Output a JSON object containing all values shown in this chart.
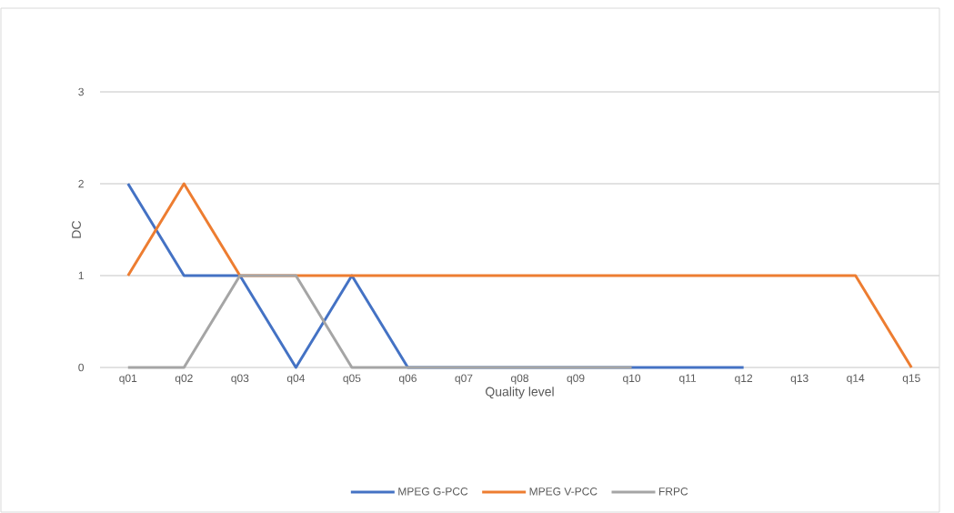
{
  "chart_data": {
    "type": "line",
    "xlabel": "Quality level",
    "ylabel": "DC",
    "categories": [
      "q01",
      "q02",
      "q03",
      "q04",
      "q05",
      "q06",
      "q07",
      "q08",
      "q09",
      "q10",
      "q11",
      "q12",
      "q13",
      "q14",
      "q15"
    ],
    "series": [
      {
        "name": "MPEG G-PCC",
        "color": "#4472c4",
        "values": [
          2,
          1,
          1,
          0,
          1,
          0,
          0,
          0,
          0,
          0,
          0,
          0,
          null,
          null,
          null
        ]
      },
      {
        "name": "MPEG V-PCC",
        "color": "#ed7d31",
        "values": [
          1,
          2,
          1,
          1,
          1,
          1,
          1,
          1,
          1,
          1,
          1,
          1,
          1,
          1,
          0
        ]
      },
      {
        "name": "FRPC",
        "color": "#a5a5a5",
        "values": [
          0,
          0,
          1,
          1,
          0,
          0,
          0,
          0,
          0,
          0,
          null,
          null,
          null,
          null,
          null
        ]
      }
    ],
    "ylim": [
      0,
      3
    ],
    "yticks": [
      0,
      1,
      2,
      3
    ],
    "grid": "y",
    "legend": "bottom",
    "marker": "none",
    "line_style": "solid"
  }
}
